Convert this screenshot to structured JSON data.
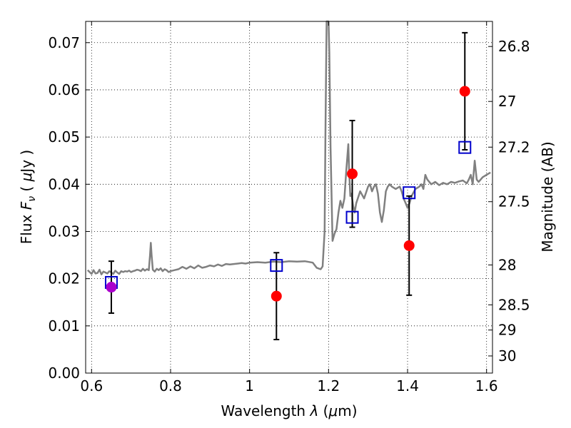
{
  "chart_data": {
    "type": "scatter",
    "xlabel": "Wavelength  λ (μm)",
    "ylabel": "Flux  F_ν  ( μJy )",
    "ylabel_parts": {
      "pre": "Flux  ",
      "F": "F",
      "nu": "ν",
      "mid": "  ( ",
      "mu": "μ",
      "post": "Jy )"
    },
    "xlabel_parts": {
      "pre": "Wavelength  ",
      "lambda": "λ",
      "mid": " (",
      "mu": "μ",
      "post": "m)"
    },
    "y2label": "Magnitude (AB)",
    "xlim": [
      0.585,
      1.615
    ],
    "ylim": [
      0.0,
      0.0745
    ],
    "x_ticks": [
      0.6,
      0.8,
      1.0,
      1.2,
      1.4,
      1.6
    ],
    "x_tick_labels": [
      "0.6",
      "0.8",
      "1",
      "1.2",
      "1.4",
      "1.6"
    ],
    "y_ticks": [
      0.0,
      0.01,
      0.02,
      0.03,
      0.04,
      0.05,
      0.06,
      0.07
    ],
    "y_tick_labels": [
      "0.00",
      "0.01",
      "0.02",
      "0.03",
      "0.04",
      "0.05",
      "0.06",
      "0.07"
    ],
    "y2_ticks": [
      26.8,
      27.0,
      27.2,
      27.5,
      28.0,
      28.5,
      29.0,
      30.0
    ],
    "y2_tick_labels": [
      "26.8",
      "27",
      "27.2",
      "27.5",
      "28",
      "28.5",
      "29",
      "30"
    ],
    "grid": true,
    "series": [
      {
        "kind": "line",
        "color": "#808080",
        "x": [
          0.59,
          0.6,
          0.605,
          0.61,
          0.615,
          0.62,
          0.625,
          0.63,
          0.635,
          0.64,
          0.645,
          0.65,
          0.655,
          0.66,
          0.665,
          0.67,
          0.675,
          0.68,
          0.685,
          0.69,
          0.695,
          0.7,
          0.705,
          0.71,
          0.715,
          0.72,
          0.725,
          0.73,
          0.735,
          0.74,
          0.745,
          0.748,
          0.75,
          0.752,
          0.755,
          0.76,
          0.765,
          0.77,
          0.775,
          0.78,
          0.785,
          0.79,
          0.795,
          0.8,
          0.81,
          0.82,
          0.83,
          0.84,
          0.85,
          0.86,
          0.87,
          0.88,
          0.89,
          0.9,
          0.91,
          0.92,
          0.93,
          0.94,
          0.95,
          0.96,
          0.97,
          0.98,
          0.99,
          1.0,
          1.02,
          1.04,
          1.06,
          1.08,
          1.1,
          1.12,
          1.14,
          1.16,
          1.17,
          1.18,
          1.185,
          1.19,
          1.192,
          1.195,
          1.198,
          1.2,
          1.202,
          1.205,
          1.21,
          1.215,
          1.22,
          1.225,
          1.23,
          1.235,
          1.24,
          1.245,
          1.25,
          1.252,
          1.255,
          1.258,
          1.262,
          1.266,
          1.27,
          1.28,
          1.29,
          1.3,
          1.305,
          1.31,
          1.315,
          1.32,
          1.325,
          1.33,
          1.335,
          1.34,
          1.345,
          1.35,
          1.355,
          1.36,
          1.37,
          1.38,
          1.385,
          1.39,
          1.395,
          1.4,
          1.405,
          1.41,
          1.42,
          1.43,
          1.435,
          1.44,
          1.445,
          1.45,
          1.46,
          1.47,
          1.48,
          1.49,
          1.5,
          1.51,
          1.52,
          1.53,
          1.54,
          1.545,
          1.55,
          1.555,
          1.56,
          1.565,
          1.57,
          1.575,
          1.58,
          1.59,
          1.6,
          1.61
        ],
        "y": [
          0.0218,
          0.021,
          0.0218,
          0.0211,
          0.0212,
          0.0219,
          0.0209,
          0.0215,
          0.0213,
          0.0211,
          0.0216,
          0.0213,
          0.021,
          0.0217,
          0.0213,
          0.021,
          0.0216,
          0.0214,
          0.0216,
          0.0215,
          0.0217,
          0.0214,
          0.0216,
          0.0217,
          0.0219,
          0.0218,
          0.0216,
          0.0221,
          0.0217,
          0.022,
          0.0218,
          0.025,
          0.0276,
          0.025,
          0.0219,
          0.0215,
          0.0221,
          0.0218,
          0.0222,
          0.0216,
          0.022,
          0.0218,
          0.0214,
          0.0216,
          0.0218,
          0.022,
          0.0225,
          0.0221,
          0.0226,
          0.0222,
          0.0228,
          0.0223,
          0.0225,
          0.0228,
          0.0226,
          0.023,
          0.0227,
          0.0231,
          0.023,
          0.0231,
          0.0232,
          0.0233,
          0.0232,
          0.0234,
          0.0235,
          0.0234,
          0.0236,
          0.0235,
          0.0237,
          0.0236,
          0.0237,
          0.0234,
          0.0223,
          0.022,
          0.0226,
          0.03,
          0.05,
          0.0745,
          0.0745,
          0.0745,
          0.068,
          0.048,
          0.028,
          0.0295,
          0.0305,
          0.034,
          0.0365,
          0.035,
          0.037,
          0.043,
          0.0485,
          0.043,
          0.0375,
          0.038,
          0.0355,
          0.034,
          0.036,
          0.0385,
          0.037,
          0.0395,
          0.04,
          0.0385,
          0.0395,
          0.04,
          0.038,
          0.034,
          0.032,
          0.0345,
          0.0385,
          0.0395,
          0.04,
          0.0395,
          0.039,
          0.0395,
          0.0385,
          0.037,
          0.036,
          0.035,
          0.036,
          0.0375,
          0.039,
          0.0395,
          0.04,
          0.039,
          0.042,
          0.041,
          0.04,
          0.0405,
          0.0398,
          0.0403,
          0.04,
          0.0405,
          0.0403,
          0.0406,
          0.0408,
          0.0405,
          0.0402,
          0.041,
          0.042,
          0.04,
          0.045,
          0.041,
          0.0405,
          0.0415,
          0.042,
          0.0425
        ]
      },
      {
        "kind": "squares",
        "color": "#0000cc",
        "x": [
          0.65,
          1.068,
          1.26,
          1.404,
          1.545
        ],
        "y": [
          0.0192,
          0.0228,
          0.033,
          0.0382,
          0.0478
        ]
      },
      {
        "kind": "points-with-errors",
        "color": "#ff0000",
        "x": [
          0.65,
          1.068,
          1.26,
          1.404,
          1.545
        ],
        "y": [
          0.0182,
          0.0163,
          0.0422,
          0.027,
          0.0597
        ],
        "yerr": [
          0.0055,
          0.0092,
          0.0113,
          0.0105,
          0.0124
        ],
        "point_colors": [
          "#aa00cc",
          "#ff0000",
          "#ff0000",
          "#ff0000",
          "#ff0000"
        ]
      }
    ]
  }
}
